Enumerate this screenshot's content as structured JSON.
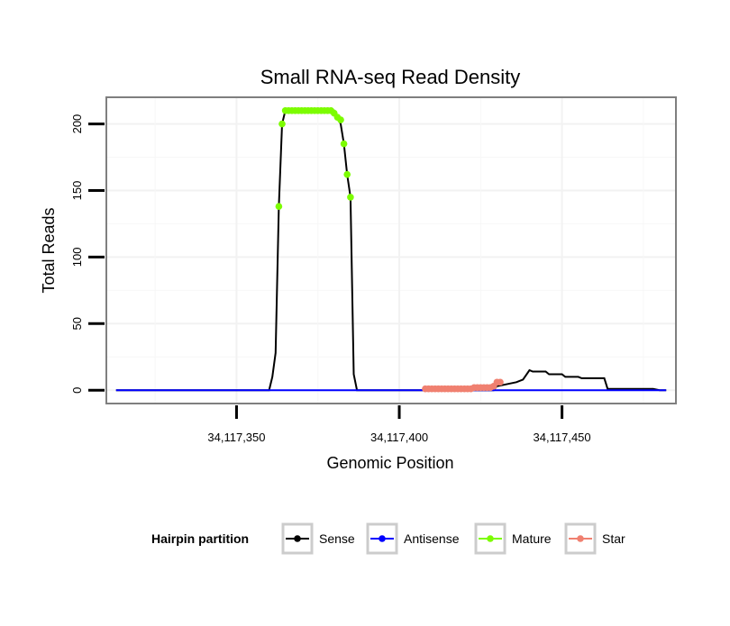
{
  "chart_data": {
    "type": "line",
    "title": "Small RNA-seq Read Density",
    "xlabel": "Genomic Position",
    "ylabel": "Total Reads",
    "xlim": [
      34117310,
      34117485
    ],
    "ylim": [
      -10,
      220
    ],
    "xticks": [
      34117350,
      34117400,
      34117450
    ],
    "xtick_labels": [
      "34,117,350",
      "34,117,400",
      "34,117,450"
    ],
    "yticks": [
      0,
      50,
      100,
      150,
      200
    ],
    "ytick_labels": [
      "0",
      "50",
      "100",
      "150",
      "200"
    ],
    "grid": true,
    "legend": {
      "title": "Hairpin partition",
      "position": "bottom",
      "entries": [
        {
          "name": "Sense",
          "color": "#000000"
        },
        {
          "name": "Antisense",
          "color": "#0000ff"
        },
        {
          "name": "Mature",
          "color": "#7cfc00"
        },
        {
          "name": "Star",
          "color": "#f08070"
        }
      ]
    },
    "series": [
      {
        "name": "Sense",
        "style": "line",
        "color": "#000000",
        "x": [
          34117313,
          34117360,
          34117361,
          34117362,
          34117363,
          34117364,
          34117365,
          34117366,
          34117380,
          34117381,
          34117382,
          34117383,
          34117384,
          34117385,
          34117386,
          34117387,
          34117429,
          34117430,
          34117432,
          34117434,
          34117436,
          34117438,
          34117440,
          34117441,
          34117445,
          34117446,
          34117450,
          34117451,
          34117455,
          34117456,
          34117463,
          34117464,
          34117478,
          34117480,
          34117482
        ],
        "y": [
          0,
          0,
          10,
          28,
          138,
          200,
          210,
          210,
          210,
          205,
          200,
          185,
          162,
          145,
          12,
          0,
          0,
          3,
          4,
          5,
          6,
          8,
          15,
          14,
          14,
          12,
          12,
          10,
          10,
          9,
          9,
          1,
          1,
          0,
          0
        ]
      },
      {
        "name": "Antisense",
        "style": "line",
        "color": "#0000ff",
        "x": [
          34117313,
          34117482
        ],
        "y": [
          0,
          0
        ]
      },
      {
        "name": "Mature",
        "style": "points",
        "color": "#7cfc00",
        "x": [
          34117363,
          34117364,
          34117365,
          34117366,
          34117367,
          34117368,
          34117369,
          34117370,
          34117371,
          34117372,
          34117373,
          34117374,
          34117375,
          34117376,
          34117377,
          34117378,
          34117379,
          34117380,
          34117381,
          34117382,
          34117383,
          34117384,
          34117385
        ],
        "y": [
          138,
          200,
          210,
          210,
          210,
          210,
          210,
          210,
          210,
          210,
          210,
          210,
          210,
          210,
          210,
          210,
          210,
          208,
          205,
          203,
          185,
          162,
          145
        ]
      },
      {
        "name": "Star",
        "style": "points",
        "color": "#f08070",
        "x": [
          34117408,
          34117409,
          34117410,
          34117411,
          34117412,
          34117413,
          34117414,
          34117415,
          34117416,
          34117417,
          34117418,
          34117419,
          34117420,
          34117421,
          34117422,
          34117423,
          34117424,
          34117425,
          34117426,
          34117427,
          34117428,
          34117429,
          34117430,
          34117431
        ],
        "y": [
          1,
          1,
          1,
          1,
          1,
          1,
          1,
          1,
          1,
          1,
          1,
          1,
          1,
          1,
          1,
          2,
          2,
          2,
          2,
          2,
          2,
          3,
          6,
          6
        ]
      }
    ]
  }
}
